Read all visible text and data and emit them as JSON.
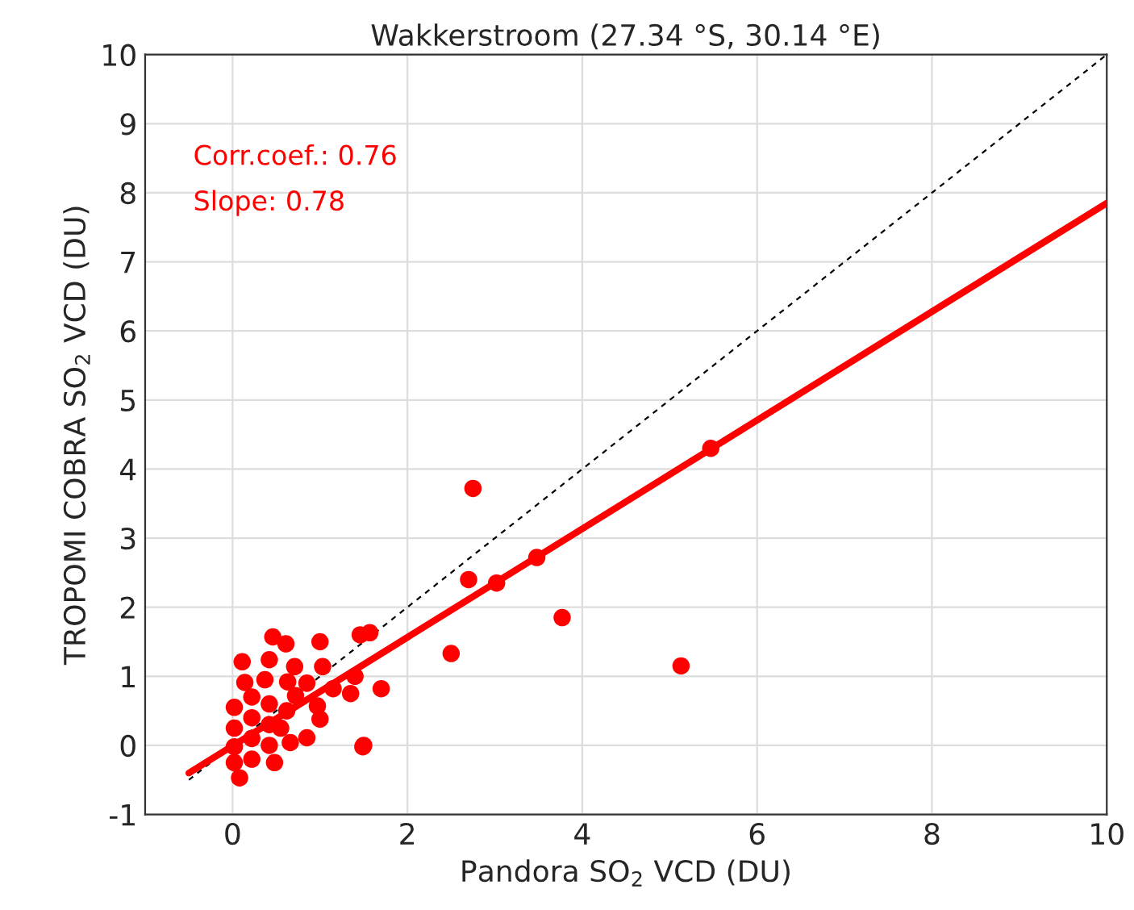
{
  "chart_data": {
    "type": "scatter",
    "title": "Wakkerstroom (27.34 °S, 30.14 °E)",
    "xlabel": "Pandora SO$_{2}$ VCD (DU)",
    "ylabel": "TROPOMI COBRA SO$_{2}$ VCD (DU)",
    "xlim": [
      -1,
      10
    ],
    "ylim": [
      -1,
      10
    ],
    "xticks": [
      0,
      2,
      4,
      6,
      8,
      10
    ],
    "yticks": [
      -1,
      0,
      1,
      2,
      3,
      4,
      5,
      6,
      7,
      8,
      9,
      10
    ],
    "grid": true,
    "annotations": [
      "Corr.coef.: 0.76",
      "Slope: 0.78"
    ],
    "series": [
      {
        "color": "#ff0000",
        "marker": "circle",
        "x": [
          2.75,
          2.7,
          3.02,
          3.48,
          3.77,
          2.5,
          5.13,
          5.47,
          1.5,
          1.49,
          0.48,
          0.08,
          0.46,
          0.61,
          1.0,
          1.46,
          1.57,
          0.11,
          0.42,
          0.71,
          1.03,
          0.14,
          0.37,
          0.63,
          0.85,
          1.4,
          1.15,
          1.35,
          1.7,
          1.0,
          0.85,
          0.66,
          0.72,
          0.97,
          0.02,
          0.02,
          0.02,
          0.02,
          0.22,
          0.22,
          0.22,
          0.22,
          0.42,
          0.42,
          0.42,
          0.55,
          0.62
        ],
        "values": [
          3.72,
          2.4,
          2.35,
          2.72,
          1.85,
          1.33,
          1.15,
          4.3,
          0.0,
          -0.02,
          -0.25,
          -0.47,
          1.57,
          1.47,
          1.5,
          1.6,
          1.63,
          1.21,
          1.24,
          1.14,
          1.14,
          0.91,
          0.95,
          0.92,
          0.9,
          1.0,
          0.82,
          0.75,
          0.82,
          0.38,
          0.11,
          0.04,
          0.72,
          0.57,
          -0.25,
          -0.02,
          0.25,
          0.55,
          -0.2,
          0.1,
          0.4,
          0.7,
          0.0,
          0.3,
          0.6,
          0.25,
          0.5
        ]
      },
      {
        "type": "line",
        "color": "#ff0000",
        "x": [
          -0.5,
          10
        ],
        "values": [
          -0.4,
          7.85
        ],
        "line_style": "solid"
      },
      {
        "type": "line",
        "color": "#000000",
        "x": [
          -0.5,
          10
        ],
        "values": [
          -0.5,
          10
        ],
        "line_style": "dashed"
      }
    ]
  }
}
